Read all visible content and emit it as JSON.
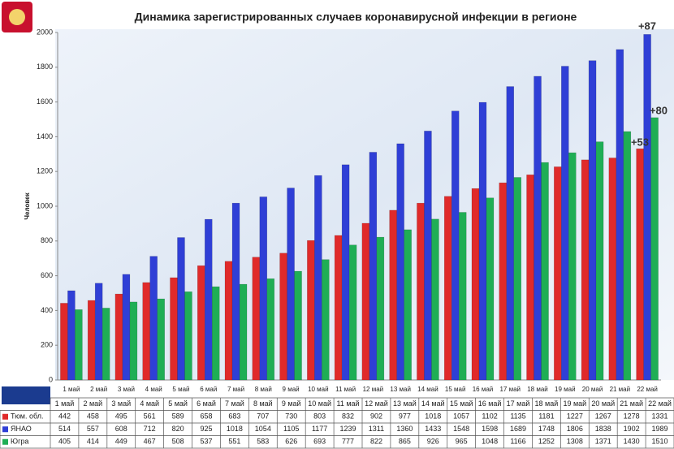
{
  "chart_data": {
    "type": "bar",
    "title": "Динамика зарегистрированных случаев коронавирусной инфекции  в регионе",
    "y_label": "Человек",
    "categories": [
      "1 май",
      "2 май",
      "3 май",
      "4 май",
      "5 май",
      "6 май",
      "7 май",
      "8 май",
      "9 май",
      "10 май",
      "11 май",
      "12 май",
      "13 май",
      "14 май",
      "15 май",
      "16 май",
      "17 май",
      "18 май",
      "19 май",
      "20 май",
      "21 май",
      "22 май"
    ],
    "series": [
      {
        "name": "Тюм. обл.",
        "color": "#e02a2a",
        "values": [
          442,
          458,
          495,
          561,
          589,
          658,
          683,
          707,
          730,
          803,
          832,
          902,
          977,
          1018,
          1057,
          1102,
          1135,
          1181,
          1227,
          1267,
          1278,
          1331
        ]
      },
      {
        "name": "ЯНАО",
        "color": "#2f3fd6",
        "values": [
          514,
          557,
          608,
          712,
          820,
          925,
          1018,
          1054,
          1105,
          1177,
          1239,
          1311,
          1360,
          1433,
          1548,
          1598,
          1689,
          1748,
          1806,
          1838,
          1902,
          1989
        ]
      },
      {
        "name": "Югра",
        "color": "#1fae55",
        "values": [
          405,
          414,
          449,
          467,
          508,
          537,
          551,
          583,
          626,
          693,
          777,
          822,
          865,
          926,
          965,
          1048,
          1166,
          1252,
          1308,
          1371,
          1430,
          1510
        ]
      }
    ],
    "annotations": [
      "+87",
      "+80",
      "+53"
    ],
    "ylim": [
      0,
      2000
    ],
    "yticks": [
      0,
      200,
      400,
      600,
      800,
      1000,
      1200,
      1400,
      1600,
      1800,
      2000
    ],
    "grid": false
  }
}
